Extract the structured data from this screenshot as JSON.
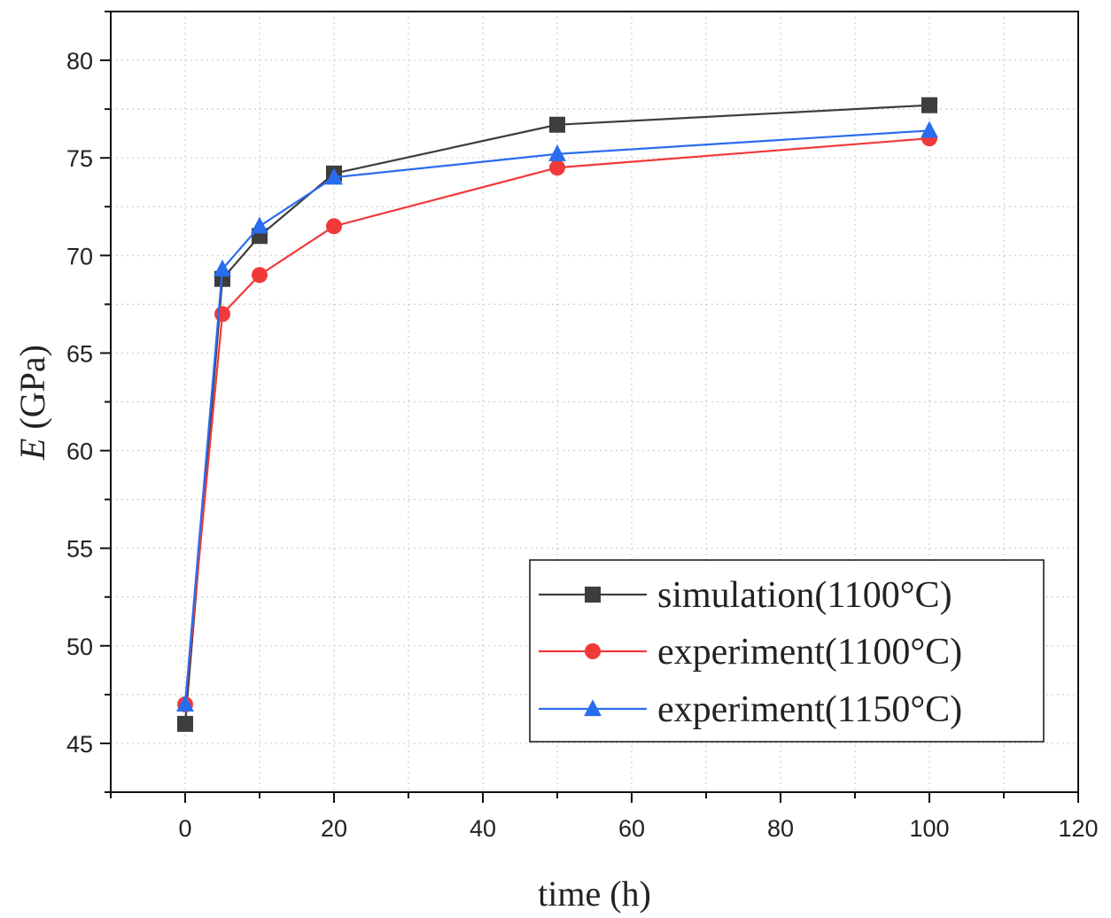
{
  "chart_data": {
    "type": "line",
    "title": "",
    "xlabel": "time (h)",
    "ylabel_italic": "E",
    "ylabel_unit": " (GPa)",
    "xlim": [
      -10,
      120
    ],
    "ylim": [
      42.5,
      82.5
    ],
    "xticks": [
      0,
      20,
      40,
      60,
      80,
      100,
      120
    ],
    "yticks": [
      45,
      50,
      55,
      60,
      65,
      70,
      75,
      80
    ],
    "grid": true,
    "legend_position": "bottom-right",
    "series": [
      {
        "name": "simulation(1100°C)",
        "color": "#3d3d3d",
        "marker": "square",
        "x": [
          0,
          5,
          10,
          20,
          50,
          100
        ],
        "y": [
          46,
          68.8,
          71,
          74.2,
          76.7,
          77.7
        ]
      },
      {
        "name": "experiment(1100°C)",
        "color": "#f03a3a",
        "marker": "circle",
        "x": [
          0,
          5,
          10,
          20,
          50,
          100
        ],
        "y": [
          47,
          67,
          69,
          71.5,
          74.5,
          76
        ]
      },
      {
        "name": "experiment(1150°C)",
        "color": "#2a6cf0",
        "marker": "triangle",
        "x": [
          0,
          5,
          10,
          20,
          50,
          100
        ],
        "y": [
          47,
          69.3,
          71.5,
          74,
          75.2,
          76.4
        ]
      }
    ]
  }
}
